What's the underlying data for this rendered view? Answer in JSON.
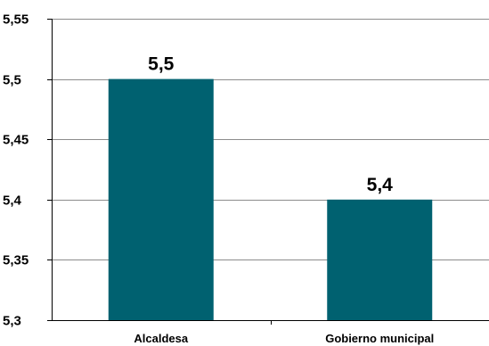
{
  "chart_data": {
    "type": "bar",
    "categories": [
      "Alcaldesa",
      "Gobierno municipal"
    ],
    "values": [
      5.5,
      5.4
    ],
    "data_labels": [
      "5,5",
      "5,4"
    ],
    "ylim": [
      5.3,
      5.55
    ],
    "yticks": [
      5.3,
      5.35,
      5.4,
      5.45,
      5.5,
      5.55
    ],
    "ytick_labels": [
      "5,3",
      "5,35",
      "5,4",
      "5,45",
      "5,5",
      "5,55"
    ],
    "grid": true,
    "legend": "none",
    "colors": {
      "bar": "#006170",
      "grid": "#8c8c8c",
      "axis": "#000000"
    }
  }
}
